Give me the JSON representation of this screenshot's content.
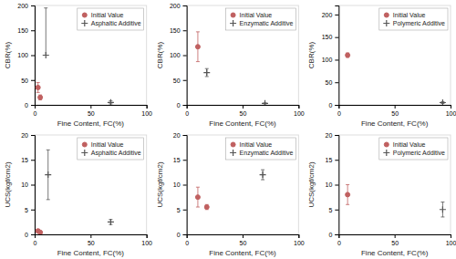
{
  "chart_data": [
    {
      "type": "scatter",
      "xlabel": "Fine Content, FC(%)",
      "ylabel": "CBR(%)",
      "xlim": [
        0,
        100
      ],
      "xticks": [
        0,
        50,
        100
      ],
      "ylim": [
        0,
        200
      ],
      "yticks": [
        0,
        50,
        100,
        150,
        200
      ],
      "legend": "upper right",
      "grid": false,
      "series": [
        {
          "name": "Initial Value",
          "color": "#c06060",
          "marker": "circle",
          "x": [
            3,
            5
          ],
          "values": [
            35,
            15
          ],
          "error_low": [
            10,
            5
          ],
          "error_high": [
            10,
            5
          ]
        },
        {
          "name": "Asphaltic Additive",
          "color": "#555555",
          "marker": "plus",
          "x": [
            10,
            68
          ],
          "values": [
            100,
            5
          ],
          "error_low": [
            0,
            3
          ],
          "error_high": [
            95,
            3
          ]
        }
      ]
    },
    {
      "type": "scatter",
      "xlabel": "Fine Content, FC(%)",
      "ylabel": "CBR(%)",
      "xlim": [
        0,
        100
      ],
      "xticks": [
        0,
        50,
        100
      ],
      "ylim": [
        0,
        200
      ],
      "yticks": [
        0,
        50,
        100,
        150,
        200
      ],
      "legend": "upper right",
      "grid": false,
      "series": [
        {
          "name": "Initial Value",
          "color": "#c06060",
          "marker": "circle",
          "x": [
            10
          ],
          "values": [
            117
          ],
          "error_low": [
            30
          ],
          "error_high": [
            30
          ]
        },
        {
          "name": "Enzymatic Additive",
          "color": "#555555",
          "marker": "plus",
          "x": [
            18,
            70
          ],
          "values": [
            65,
            3
          ],
          "error_low": [
            8,
            1
          ],
          "error_high": [
            8,
            1
          ]
        }
      ]
    },
    {
      "type": "scatter",
      "xlabel": "Fine Content, FC(%)",
      "ylabel": "CBR(%)",
      "xlim": [
        0,
        100
      ],
      "xticks": [
        0,
        50,
        100
      ],
      "ylim": [
        0,
        220
      ],
      "yticks": [
        0,
        50,
        100,
        150,
        200
      ],
      "legend": "upper right",
      "grid": false,
      "series": [
        {
          "name": "Initial Value",
          "color": "#c06060",
          "marker": "circle",
          "x": [
            8
          ],
          "values": [
            110
          ],
          "error_low": [
            5
          ],
          "error_high": [
            5
          ]
        },
        {
          "name": "Polymeric Additive",
          "color": "#555555",
          "marker": "plus",
          "x": [
            93
          ],
          "values": [
            5
          ],
          "error_low": [
            2
          ],
          "error_high": [
            2
          ]
        }
      ]
    },
    {
      "type": "scatter",
      "xlabel": "Fine Content, FC(%)",
      "ylabel": "UCS(kgf/cm2)",
      "xlim": [
        0,
        100
      ],
      "xticks": [
        0,
        50,
        100
      ],
      "ylim": [
        0,
        20
      ],
      "yticks": [
        0,
        5,
        10,
        15,
        20
      ],
      "legend": "upper right",
      "grid": false,
      "series": [
        {
          "name": "Initial Value",
          "color": "#c06060",
          "marker": "circle",
          "x": [
            3,
            5
          ],
          "values": [
            0.7,
            0.4
          ],
          "error_low": [
            0.3,
            0.2
          ],
          "error_high": [
            0.3,
            0.2
          ]
        },
        {
          "name": "Asphaltic Additive",
          "color": "#555555",
          "marker": "plus",
          "x": [
            12,
            68
          ],
          "values": [
            12,
            2.5
          ],
          "error_low": [
            5,
            0.5
          ],
          "error_high": [
            5,
            0.5
          ]
        }
      ]
    },
    {
      "type": "scatter",
      "xlabel": "Fine Content, FC(%)",
      "ylabel": "UCS(kgf/cm2)",
      "xlim": [
        0,
        100
      ],
      "xticks": [
        0,
        50,
        100
      ],
      "ylim": [
        0,
        20
      ],
      "yticks": [
        0,
        5,
        10,
        15,
        20
      ],
      "legend": "upper right",
      "grid": false,
      "series": [
        {
          "name": "Initial Value",
          "color": "#c06060",
          "marker": "circle",
          "x": [
            10,
            18
          ],
          "values": [
            7.5,
            5.5
          ],
          "error_low": [
            2,
            0.5
          ],
          "error_high": [
            2,
            0.5
          ]
        },
        {
          "name": "Enzymatic Additive",
          "color": "#555555",
          "marker": "plus",
          "x": [
            68
          ],
          "values": [
            12
          ],
          "error_low": [
            1
          ],
          "error_high": [
            1
          ]
        }
      ]
    },
    {
      "type": "scatter",
      "xlabel": "Fine Content, FC(%)",
      "ylabel": "UCS(kgf/cm2)",
      "xlim": [
        0,
        100
      ],
      "xticks": [
        0,
        50,
        100
      ],
      "ylim": [
        0,
        20
      ],
      "yticks": [
        0,
        5,
        10,
        15,
        20
      ],
      "legend": "upper right",
      "grid": false,
      "series": [
        {
          "name": "Initial Value",
          "color": "#c06060",
          "marker": "circle",
          "x": [
            8
          ],
          "values": [
            8
          ],
          "error_low": [
            2
          ],
          "error_high": [
            2
          ]
        },
        {
          "name": "Polymeric Additive",
          "color": "#555555",
          "marker": "plus",
          "x": [
            93
          ],
          "values": [
            5
          ],
          "error_low": [
            1.5
          ],
          "error_high": [
            1.5
          ]
        }
      ]
    }
  ]
}
